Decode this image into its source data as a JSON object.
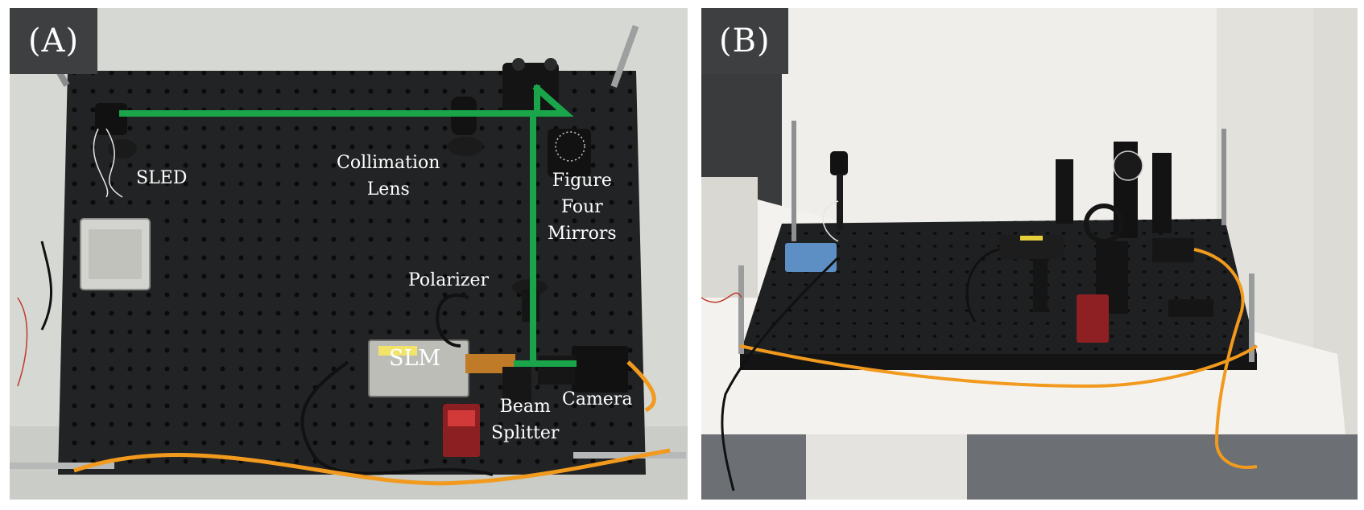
{
  "panel_a": {
    "tag": "(A)",
    "labels": {
      "sled": "SLED",
      "collimation": "Collimation\nLens",
      "figure_four": "Figure\nFour\nMirrors",
      "polarizer": "Polarizer",
      "slm": "SLM",
      "beam_splitter": "Beam\nSplitter",
      "camera": "Camera"
    }
  },
  "panel_b": {
    "tag": "(B)"
  },
  "colors": {
    "beam": "#1aa54b",
    "breadboard": "#232425",
    "cable_orange": "#f29a1e",
    "label_bg": "#3d3f40"
  }
}
